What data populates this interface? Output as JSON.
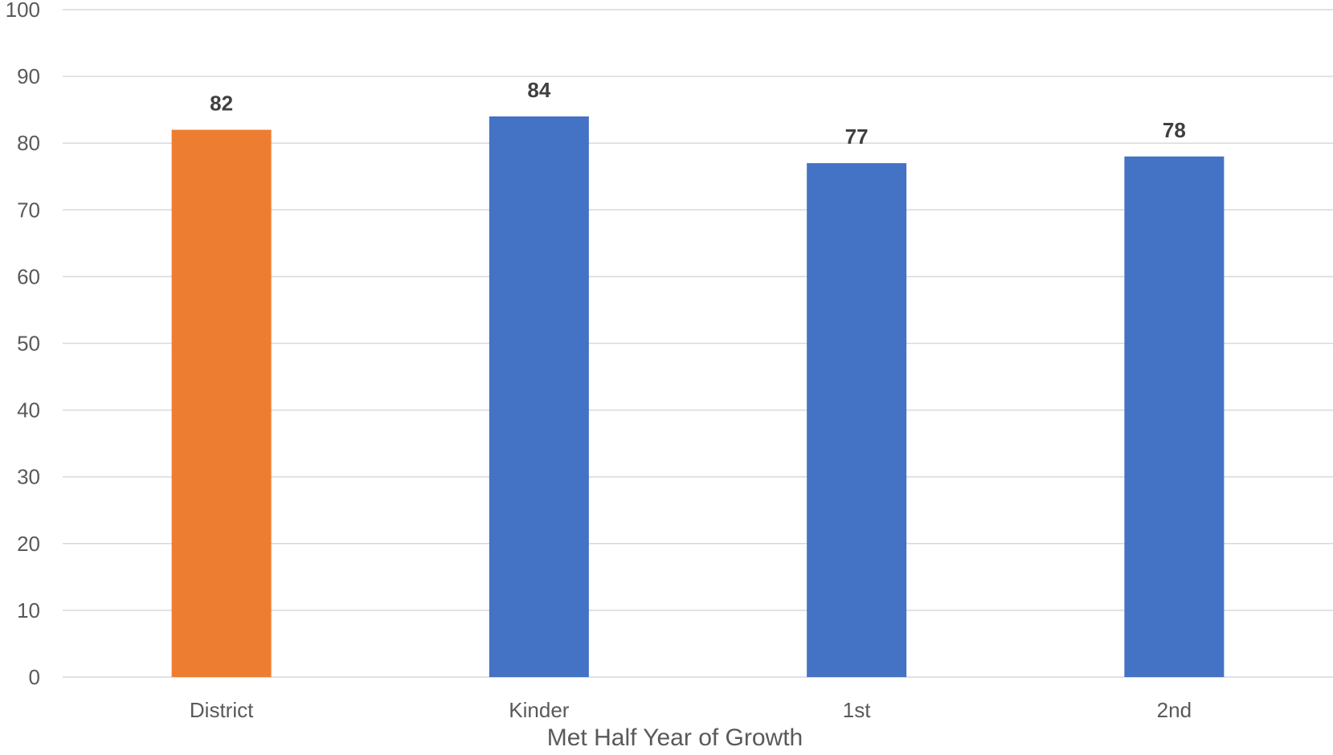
{
  "chart_data": {
    "type": "bar",
    "title": "",
    "xlabel": "Met Half Year of Growth",
    "ylabel": "",
    "categories": [
      "District",
      "Kinder",
      "1st",
      "2nd"
    ],
    "values": [
      82,
      84,
      77,
      78
    ],
    "bar_colors": [
      "#ED7D31",
      "#4472C4",
      "#4472C4",
      "#4472C4"
    ],
    "ylim": [
      0,
      100
    ],
    "yticks": [
      0,
      10,
      20,
      30,
      40,
      50,
      60,
      70,
      80,
      90,
      100
    ],
    "grid": true,
    "legend": "none",
    "data_labels": true
  }
}
